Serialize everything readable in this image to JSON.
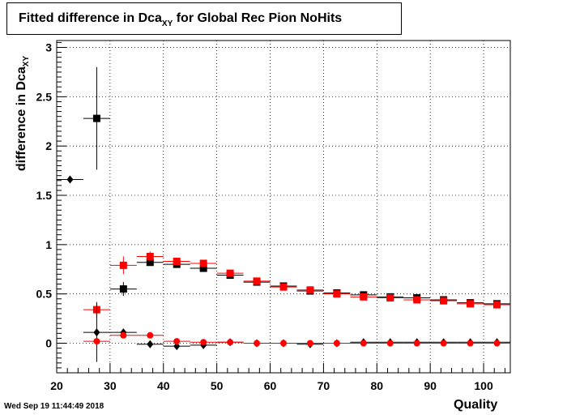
{
  "chart_data": {
    "type": "scatter",
    "title_main": "Fitted difference in Dca",
    "title_sub": "XY",
    "title_rest": "for Global Rec Pion NoHits",
    "ylabel_main": "difference in Dca",
    "ylabel_sub": "XY",
    "xlabel": "Quality",
    "xlim": [
      20,
      105
    ],
    "ylim": [
      -0.3,
      3.07
    ],
    "x_ticks": [
      20,
      30,
      40,
      50,
      60,
      70,
      80,
      90,
      100
    ],
    "y_ticks": [
      0,
      0.5,
      1,
      1.5,
      2,
      2.5,
      3
    ],
    "y_tick_labels": [
      "0",
      "0.5",
      "1",
      "1.5",
      "2",
      "2.5",
      "3"
    ],
    "grid": true,
    "series": [
      {
        "color": "#000000",
        "marker": "square",
        "x": [
          27.5,
          32.5,
          37.5,
          42.5,
          47.5,
          52.5,
          57.5,
          62.5,
          67.5,
          72.5,
          77.5,
          82.5,
          87.5,
          92.5,
          97.5,
          102.5
        ],
        "y": [
          2.28,
          0.55,
          0.82,
          0.8,
          0.76,
          0.69,
          0.62,
          0.58,
          0.53,
          0.51,
          0.49,
          0.47,
          0.46,
          0.44,
          0.41,
          0.4
        ],
        "yerr": [
          0.52,
          0.07,
          0.03,
          0.02,
          0.02,
          0.015,
          0.015,
          0.01,
          0.01,
          0.01,
          0.01,
          0.01,
          0.01,
          0.01,
          0.01,
          0.01
        ]
      },
      {
        "color": "#ff0000",
        "marker": "square",
        "x": [
          27.5,
          32.5,
          37.5,
          42.5,
          47.5,
          52.5,
          57.5,
          62.5,
          67.5,
          72.5,
          77.5,
          82.5,
          87.5,
          92.5,
          97.5,
          102.5
        ],
        "y": [
          0.34,
          0.79,
          0.88,
          0.83,
          0.81,
          0.71,
          0.63,
          0.57,
          0.54,
          0.5,
          0.47,
          0.46,
          0.44,
          0.43,
          0.4,
          0.39
        ],
        "yerr": [
          0.08,
          0.09,
          0.05,
          0.03,
          0.03,
          0.02,
          0.015,
          0.015,
          0.01,
          0.01,
          0.01,
          0.01,
          0.01,
          0.01,
          0.01,
          0.01
        ]
      },
      {
        "color": "#000000",
        "marker": "diamond",
        "x": [
          22.5,
          27.5,
          32.5,
          37.5,
          42.5,
          47.5,
          52.5,
          57.5,
          62.5,
          67.5,
          72.5,
          77.5,
          82.5,
          87.5,
          92.5,
          97.5,
          102.5
        ],
        "y": [
          1.66,
          0.11,
          0.11,
          -0.01,
          -0.03,
          -0.02,
          0.01,
          0.0,
          0.0,
          -0.01,
          0.0,
          0.01,
          0.01,
          0.01,
          0.01,
          0.01,
          0.01
        ],
        "yerr": [
          0.0,
          0.3,
          0.03,
          0.02,
          0.01,
          0.01,
          0.01,
          0.01,
          0.01,
          0.01,
          0.01,
          0.01,
          0.01,
          0.01,
          0.01,
          0.01,
          0.01
        ]
      },
      {
        "color": "#ff0000",
        "marker": "circle",
        "x": [
          27.5,
          32.5,
          37.5,
          42.5,
          47.5,
          52.5,
          57.5,
          62.5,
          67.5,
          72.5,
          77.5,
          82.5,
          87.5,
          92.5,
          97.5,
          102.5
        ],
        "y": [
          0.02,
          0.08,
          0.08,
          0.02,
          0.01,
          0.01,
          0.0,
          0.0,
          0.0,
          0.0,
          0.0,
          0.0,
          0.0,
          0.0,
          0.0,
          0.0
        ],
        "yerr": [
          0.02,
          0.02,
          0.01,
          0.01,
          0.01,
          0.01,
          0.01,
          0.01,
          0.01,
          0.01,
          0.01,
          0.01,
          0.01,
          0.01,
          0.01,
          0.01
        ]
      }
    ]
  },
  "footer": {
    "timestamp": "Wed Sep 19 11:44:49 2018"
  }
}
